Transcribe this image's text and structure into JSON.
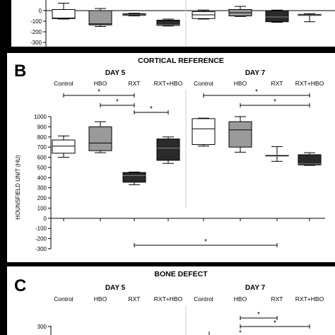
{
  "panel_a": {
    "chart_data": {
      "type": "box",
      "y_ticks": [
        "0",
        "-100",
        "-200",
        "-300"
      ],
      "groups": [
        {
          "day": "DAY 5",
          "category": "Control",
          "min": -80,
          "q1": -75,
          "median": -70,
          "q3": 10,
          "max": 70,
          "fill": "#ffffff"
        },
        {
          "day": "DAY 5",
          "category": "HBO",
          "min": -150,
          "q1": -135,
          "median": -125,
          "q3": 0,
          "max": 20,
          "fill": "#9a9a9a"
        },
        {
          "day": "DAY 5",
          "category": "RXT",
          "min": -50,
          "q1": -45,
          "median": -40,
          "q3": -30,
          "max": -25,
          "fill": "#2a2a2a"
        },
        {
          "day": "DAY 5",
          "category": "RXT+HBO",
          "min": -145,
          "q1": -140,
          "median": -135,
          "q3": -90,
          "max": -80,
          "fill": "#2a2a2a"
        },
        {
          "day": "DAY 7",
          "category": "Control",
          "min": -80,
          "q1": -75,
          "median": -40,
          "q3": -10,
          "max": 5,
          "fill": "#ffffff"
        },
        {
          "day": "DAY 7",
          "category": "HBO",
          "min": -55,
          "q1": -50,
          "median": -20,
          "q3": 10,
          "max": 40,
          "fill": "#9a9a9a"
        },
        {
          "day": "DAY 7",
          "category": "RXT",
          "min": -110,
          "q1": -105,
          "median": -60,
          "q3": 0,
          "max": 5,
          "fill": "#2a2a2a"
        },
        {
          "day": "DAY 7",
          "category": "RXT+HBO",
          "min": -105,
          "q1": -45,
          "median": -40,
          "q3": -35,
          "max": -30,
          "fill": "#2a2a2a"
        }
      ]
    }
  },
  "panel_b": {
    "letter": "B",
    "title": "CORTICAL REFERENCE",
    "day5": "DAY 5",
    "day7": "DAY 7",
    "categories": [
      "Control",
      "HBO",
      "RXT",
      "RXT+HBO"
    ],
    "star": "*",
    "chart_data": {
      "type": "box",
      "ylabel": "HOUNSFIELD UNIT (HU)",
      "ylim": [
        -300,
        1000
      ],
      "y_ticks": [
        "1000",
        "900",
        "800",
        "700",
        "600",
        "500",
        "400",
        "300",
        "200",
        "100",
        "0",
        "-100",
        "-200",
        "-300"
      ],
      "groups": [
        {
          "day": "DAY 5",
          "category": "Control",
          "min": 600,
          "q1": 640,
          "median": 710,
          "q3": 770,
          "max": 810,
          "fill": "#ffffff"
        },
        {
          "day": "DAY 5",
          "category": "HBO",
          "min": 645,
          "q1": 665,
          "median": 740,
          "q3": 900,
          "max": 950,
          "fill": "#9a9a9a"
        },
        {
          "day": "DAY 5",
          "category": "RXT",
          "min": 330,
          "q1": 355,
          "median": 420,
          "q3": 450,
          "max": 455,
          "fill": "#2a2a2a"
        },
        {
          "day": "DAY 5",
          "category": "RXT+HBO",
          "min": 540,
          "q1": 570,
          "median": 690,
          "q3": 780,
          "max": 800,
          "fill": "#2a2a2a"
        },
        {
          "day": "DAY 7",
          "category": "Control",
          "min": 710,
          "q1": 725,
          "median": 880,
          "q3": 980,
          "max": 985,
          "fill": "#ffffff"
        },
        {
          "day": "DAY 7",
          "category": "HBO",
          "min": 650,
          "q1": 700,
          "median": 870,
          "q3": 950,
          "max": 1000,
          "fill": "#9a9a9a"
        },
        {
          "day": "DAY 7",
          "category": "RXT",
          "min": 560,
          "q1": 620,
          "median": 620,
          "q3": 620,
          "max": 705,
          "fill": "#2a2a2a"
        },
        {
          "day": "DAY 7",
          "category": "RXT+HBO",
          "min": 520,
          "q1": 525,
          "median": 535,
          "q3": 625,
          "max": 645,
          "fill": "#2a2a2a"
        }
      ],
      "significance_brackets": [
        {
          "from": "DAY 5 Control",
          "to": "DAY 5 RXT"
        },
        {
          "from": "DAY 5 HBO",
          "to": "DAY 5 RXT"
        },
        {
          "from": "DAY 5 RXT",
          "to": "DAY 5 RXT+HBO"
        },
        {
          "from": "DAY 7 Control",
          "to": "DAY 7 RXT+HBO"
        },
        {
          "from": "DAY 7 HBO",
          "to": "DAY 7 RXT+HBO"
        },
        {
          "from": "DAY 5 RXT",
          "to": "DAY 7 RXT"
        }
      ]
    }
  },
  "panel_c": {
    "letter": "C",
    "title": "BONE DEFECT",
    "day5": "DAY 5",
    "day7": "DAY 7",
    "categories": [
      "Control",
      "HBO",
      "RXT",
      "RXT+HBO"
    ],
    "star": "*",
    "chart_data": {
      "type": "box",
      "y_ticks": [
        "300"
      ]
    }
  }
}
